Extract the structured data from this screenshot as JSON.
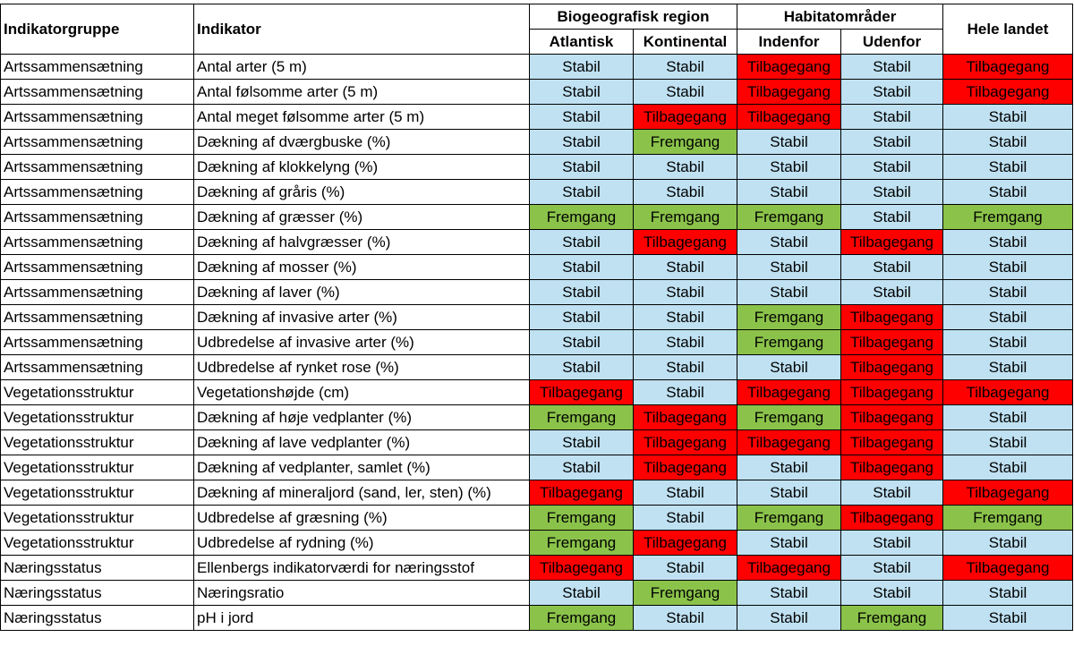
{
  "header": {
    "col_group": "Indikatorgruppe",
    "col_indicator": "Indikator",
    "group_bio": "Biogeografisk region",
    "group_hab": "Habitatområder",
    "col_total": "Hele landet",
    "sub_atlantisk": "Atlantisk",
    "sub_kontinental": "Kontinental",
    "sub_indenfor": "Indenfor",
    "sub_udenfor": "Udenfor"
  },
  "status_colors": {
    "Stabil": "#bfe1f2",
    "Fremgang": "#8bc34a",
    "Tilbagegang": "#ff0000"
  },
  "rows": [
    {
      "group": "Artssammensætning",
      "indicator": "Antal arter (5 m)",
      "values": [
        "Stabil",
        "Stabil",
        "Tilbagegang",
        "Stabil",
        "Tilbagegang"
      ]
    },
    {
      "group": "Artssammensætning",
      "indicator": "Antal følsomme arter (5 m)",
      "values": [
        "Stabil",
        "Stabil",
        "Tilbagegang",
        "Stabil",
        "Tilbagegang"
      ]
    },
    {
      "group": "Artssammensætning",
      "indicator": "Antal meget følsomme arter (5 m)",
      "values": [
        "Stabil",
        "Tilbagegang",
        "Tilbagegang",
        "Stabil",
        "Stabil"
      ]
    },
    {
      "group": "Artssammensætning",
      "indicator": "Dækning af dværgbuske (%)",
      "values": [
        "Stabil",
        "Fremgang",
        "Stabil",
        "Stabil",
        "Stabil"
      ]
    },
    {
      "group": "Artssammensætning",
      "indicator": "Dækning af klokkelyng (%)",
      "values": [
        "Stabil",
        "Stabil",
        "Stabil",
        "Stabil",
        "Stabil"
      ]
    },
    {
      "group": "Artssammensætning",
      "indicator": "Dækning af gråris (%)",
      "values": [
        "Stabil",
        "Stabil",
        "Stabil",
        "Stabil",
        "Stabil"
      ]
    },
    {
      "group": "Artssammensætning",
      "indicator": "Dækning af græsser (%)",
      "values": [
        "Fremgang",
        "Fremgang",
        "Fremgang",
        "Stabil",
        "Fremgang"
      ]
    },
    {
      "group": "Artssammensætning",
      "indicator": "Dækning af halvgræsser (%)",
      "values": [
        "Stabil",
        "Tilbagegang",
        "Stabil",
        "Tilbagegang",
        "Stabil"
      ]
    },
    {
      "group": "Artssammensætning",
      "indicator": "Dækning af mosser (%)",
      "values": [
        "Stabil",
        "Stabil",
        "Stabil",
        "Stabil",
        "Stabil"
      ]
    },
    {
      "group": "Artssammensætning",
      "indicator": "Dækning af laver (%)",
      "values": [
        "Stabil",
        "Stabil",
        "Stabil",
        "Stabil",
        "Stabil"
      ]
    },
    {
      "group": "Artssammensætning",
      "indicator": "Dækning af invasive arter (%)",
      "values": [
        "Stabil",
        "Stabil",
        "Fremgang",
        "Tilbagegang",
        "Stabil"
      ]
    },
    {
      "group": "Artssammensætning",
      "indicator": "Udbredelse af invasive arter (%)",
      "values": [
        "Stabil",
        "Stabil",
        "Fremgang",
        "Tilbagegang",
        "Stabil"
      ]
    },
    {
      "group": "Artssammensætning",
      "indicator": "Udbredelse af rynket rose (%)",
      "values": [
        "Stabil",
        "Stabil",
        "Stabil",
        "Tilbagegang",
        "Stabil"
      ]
    },
    {
      "group": "Vegetationsstruktur",
      "indicator": "Vegetationshøjde (cm)",
      "values": [
        "Tilbagegang",
        "Stabil",
        "Tilbagegang",
        "Tilbagegang",
        "Tilbagegang"
      ]
    },
    {
      "group": "Vegetationsstruktur",
      "indicator": "Dækning af høje vedplanter (%)",
      "values": [
        "Fremgang",
        "Tilbagegang",
        "Fremgang",
        "Tilbagegang",
        "Stabil"
      ]
    },
    {
      "group": "Vegetationsstruktur",
      "indicator": "Dækning af lave vedplanter (%)",
      "values": [
        "Stabil",
        "Tilbagegang",
        "Tilbagegang",
        "Tilbagegang",
        "Stabil"
      ]
    },
    {
      "group": "Vegetationsstruktur",
      "indicator": "Dækning af vedplanter, samlet (%)",
      "values": [
        "Stabil",
        "Tilbagegang",
        "Stabil",
        "Tilbagegang",
        "Stabil"
      ]
    },
    {
      "group": "Vegetationsstruktur",
      "indicator": "Dækning af mineraljord (sand, ler, sten) (%)",
      "values": [
        "Tilbagegang",
        "Stabil",
        "Stabil",
        "Stabil",
        "Tilbagegang"
      ]
    },
    {
      "group": "Vegetationsstruktur",
      "indicator": "Udbredelse af græsning (%)",
      "values": [
        "Fremgang",
        "Stabil",
        "Fremgang",
        "Tilbagegang",
        "Fremgang"
      ]
    },
    {
      "group": "Vegetationsstruktur",
      "indicator": "Udbredelse af rydning (%)",
      "values": [
        "Fremgang",
        "Tilbagegang",
        "Stabil",
        "Stabil",
        "Stabil"
      ]
    },
    {
      "group": "Næringsstatus",
      "indicator": "Ellenbergs indikatorværdi for næringsstof",
      "values": [
        "Tilbagegang",
        "Stabil",
        "Tilbagegang",
        "Stabil",
        "Tilbagegang"
      ]
    },
    {
      "group": "Næringsstatus",
      "indicator": "Næringsratio",
      "values": [
        "Stabil",
        "Fremgang",
        "Stabil",
        "Stabil",
        "Stabil"
      ]
    },
    {
      "group": "Næringsstatus",
      "indicator": "pH i jord",
      "values": [
        "Fremgang",
        "Stabil",
        "Stabil",
        "Fremgang",
        "Stabil"
      ]
    }
  ]
}
